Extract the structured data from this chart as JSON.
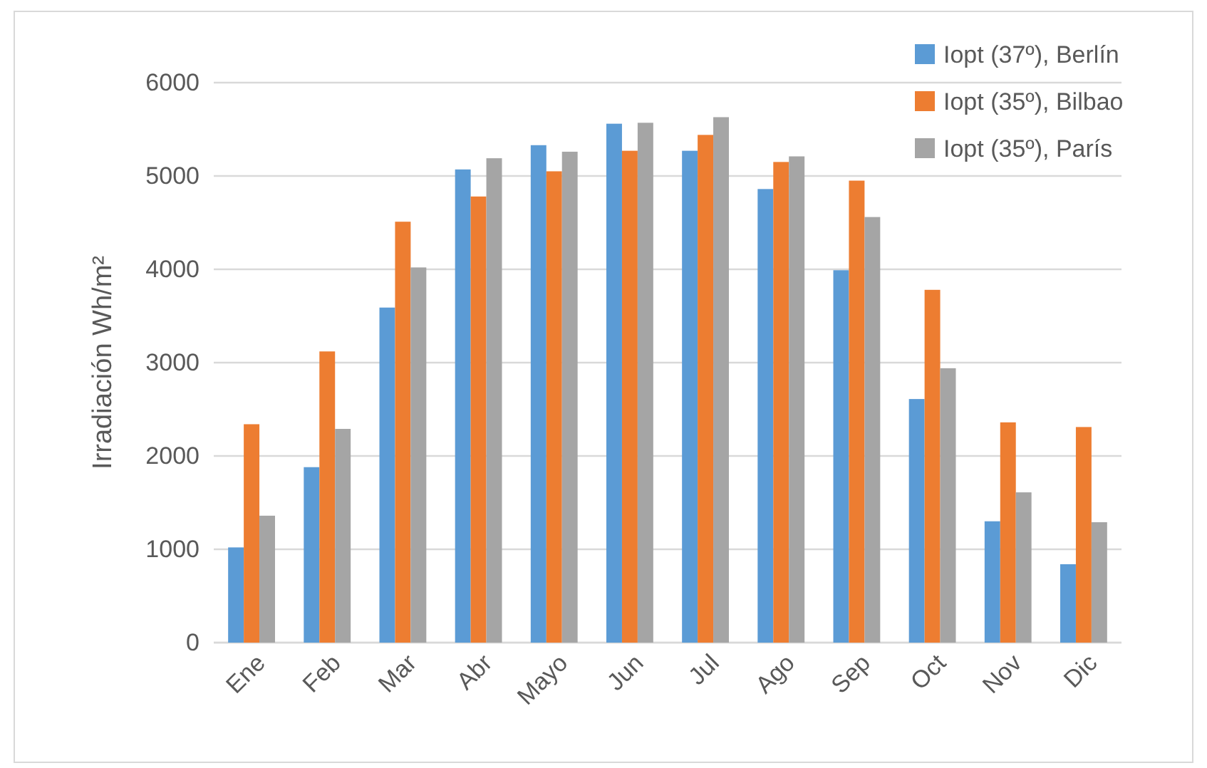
{
  "chart_data": {
    "type": "bar",
    "ylabel": "Irradiación Wh/m²",
    "categories": [
      "Ene",
      "Feb",
      "Mar",
      "Abr",
      "Mayo",
      "Jun",
      "Jul",
      "Ago",
      "Sep",
      "Oct",
      "Nov",
      "Dic"
    ],
    "series": [
      {
        "name": "Iopt (37º), Berlín",
        "color": "#5b9bd5",
        "values": [
          1020,
          1880,
          3590,
          5070,
          5330,
          5560,
          5270,
          4860,
          3990,
          2610,
          1300,
          840
        ]
      },
      {
        "name": "Iopt (35º), Bilbao",
        "color": "#ed7d31",
        "values": [
          2340,
          3120,
          4510,
          4780,
          5050,
          5270,
          5440,
          5150,
          4950,
          3780,
          2360,
          2310
        ]
      },
      {
        "name": "Iopt (35º), París",
        "color": "#a5a5a5",
        "values": [
          1360,
          2290,
          4020,
          5190,
          5260,
          5570,
          5630,
          5210,
          4560,
          2940,
          1610,
          1290
        ]
      }
    ],
    "ylim": [
      0,
      6000
    ],
    "yticks": [
      0,
      1000,
      2000,
      3000,
      4000,
      5000,
      6000
    ],
    "grid": "y",
    "legend": "top right"
  }
}
